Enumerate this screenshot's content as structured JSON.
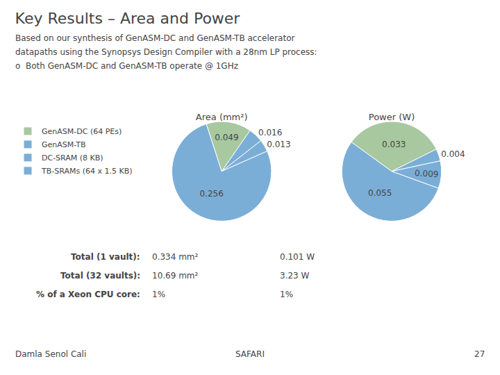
{
  "title": "Key Results – Area and Power",
  "subtitle": [
    "Based on our synthesis of GenASM-DC and GenASM-TB accelerator",
    "datapaths using the Synopsys Design Compiler with a 28nm LP process:",
    "o  Both GenASM-DC and GenASM-TB operate @ 1GHz"
  ],
  "annotations": [
    [
      "Total (1 vault):",
      "0.334 mm²",
      "0.101 W"
    ],
    [
      "Total (32 vaults):",
      "10.69 mm²",
      "3.23 W"
    ],
    [
      "% of a Xeon CPU core:",
      "1%",
      "1%"
    ],
    [
      "Damla Senol Cali",
      "SAFARI",
      "27"
    ]
  ],
  "chart_data": [
    {
      "type": "pie",
      "title": "Area (mm²)",
      "categories": [
        "GenASM-DC (64 PEs)",
        "GenASM-TB",
        "DC-SRAM (8 KB)",
        "TB-SRAMs (64 x 1.5 KB)"
      ],
      "values": [
        0.049,
        0.016,
        0.013,
        0.256
      ],
      "colors": [
        "#A8C8A0",
        "#7BAED6",
        "#7BAED6",
        "#7BAED6"
      ],
      "data_labels": true,
      "legend": "left"
    },
    {
      "type": "pie",
      "title": "Power (W)",
      "categories": [
        "GenASM-DC (64 PEs)",
        "GenASM-TB",
        "DC-SRAM (8 KB)",
        "TB-SRAMs (64 x 1.5 KB)"
      ],
      "values": [
        0.033,
        0.004,
        0.009,
        0.055
      ],
      "colors": [
        "#A8C8A0",
        "#7BAED6",
        "#7BAED6",
        "#7BAED6"
      ],
      "data_labels": true,
      "legend": "left"
    }
  ]
}
